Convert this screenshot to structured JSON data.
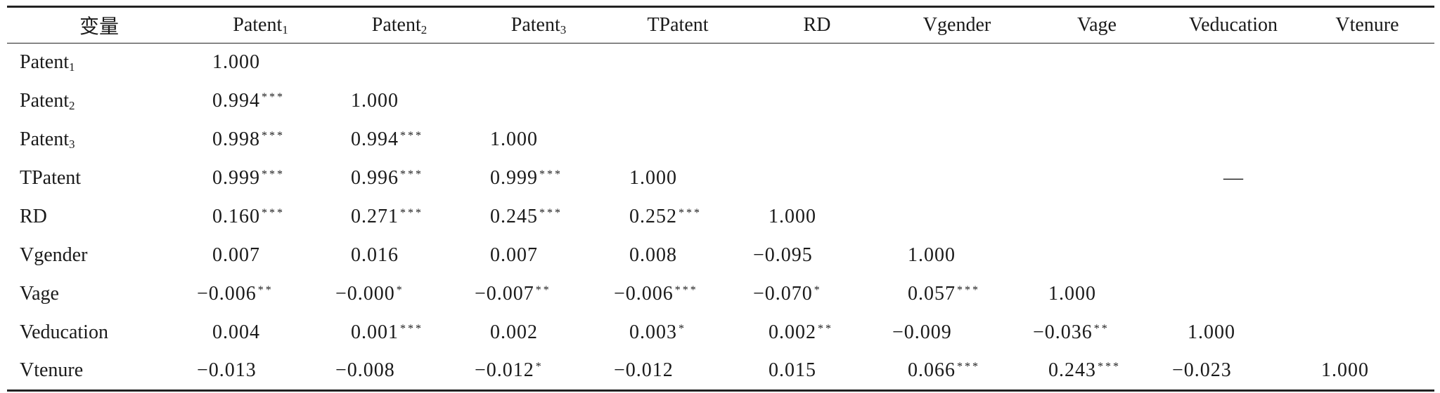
{
  "table": {
    "columns": [
      {
        "base": "变量",
        "sub": ""
      },
      {
        "base": "Patent",
        "sub": "1"
      },
      {
        "base": "Patent",
        "sub": "2"
      },
      {
        "base": "Patent",
        "sub": "3"
      },
      {
        "base": "TPatent",
        "sub": ""
      },
      {
        "base": "RD",
        "sub": ""
      },
      {
        "base": "Vgender",
        "sub": ""
      },
      {
        "base": "Vage",
        "sub": ""
      },
      {
        "base": "Veducation",
        "sub": ""
      },
      {
        "base": "Vtenure",
        "sub": ""
      }
    ],
    "rows": [
      {
        "label": {
          "base": "Patent",
          "sub": "1"
        },
        "cells": [
          {
            "v": "1.000",
            "s": ""
          }
        ]
      },
      {
        "label": {
          "base": "Patent",
          "sub": "2"
        },
        "cells": [
          {
            "v": "0.994",
            "s": "***"
          },
          {
            "v": "1.000",
            "s": ""
          }
        ]
      },
      {
        "label": {
          "base": "Patent",
          "sub": "3"
        },
        "cells": [
          {
            "v": "0.998",
            "s": "***"
          },
          {
            "v": "0.994",
            "s": "***"
          },
          {
            "v": "1.000",
            "s": ""
          }
        ]
      },
      {
        "label": {
          "base": "TPatent",
          "sub": ""
        },
        "cells": [
          {
            "v": "0.999",
            "s": "***"
          },
          {
            "v": "0.996",
            "s": "***"
          },
          {
            "v": "0.999",
            "s": "***"
          },
          {
            "v": "1.000",
            "s": ""
          }
        ],
        "dash": "—"
      },
      {
        "label": {
          "base": "RD",
          "sub": ""
        },
        "cells": [
          {
            "v": "0.160",
            "s": "***"
          },
          {
            "v": "0.271",
            "s": "***"
          },
          {
            "v": "0.245",
            "s": "***"
          },
          {
            "v": "0.252",
            "s": "***"
          },
          {
            "v": "1.000",
            "s": ""
          }
        ]
      },
      {
        "label": {
          "base": "Vgender",
          "sub": ""
        },
        "cells": [
          {
            "v": "0.007",
            "s": ""
          },
          {
            "v": "0.016",
            "s": ""
          },
          {
            "v": "0.007",
            "s": ""
          },
          {
            "v": "0.008",
            "s": ""
          },
          {
            "v": "−0.095",
            "s": ""
          },
          {
            "v": "1.000",
            "s": ""
          }
        ]
      },
      {
        "label": {
          "base": "Vage",
          "sub": ""
        },
        "cells": [
          {
            "v": "−0.006",
            "s": "**"
          },
          {
            "v": "−0.000",
            "s": "*"
          },
          {
            "v": "−0.007",
            "s": "**"
          },
          {
            "v": "−0.006",
            "s": "***"
          },
          {
            "v": "−0.070",
            "s": "*"
          },
          {
            "v": "0.057",
            "s": "***"
          },
          {
            "v": "1.000",
            "s": ""
          }
        ]
      },
      {
        "label": {
          "base": "Veducation",
          "sub": ""
        },
        "cells": [
          {
            "v": "0.004",
            "s": ""
          },
          {
            "v": "0.001",
            "s": "***"
          },
          {
            "v": "0.002",
            "s": ""
          },
          {
            "v": "0.003",
            "s": "*"
          },
          {
            "v": "0.002",
            "s": "**"
          },
          {
            "v": "−0.009",
            "s": ""
          },
          {
            "v": "−0.036",
            "s": "**"
          },
          {
            "v": "1.000",
            "s": ""
          }
        ]
      },
      {
        "label": {
          "base": "Vtenure",
          "sub": ""
        },
        "cells": [
          {
            "v": "−0.013",
            "s": ""
          },
          {
            "v": "−0.008",
            "s": ""
          },
          {
            "v": "−0.012",
            "s": "*"
          },
          {
            "v": "−0.012",
            "s": ""
          },
          {
            "v": "0.015",
            "s": ""
          },
          {
            "v": "0.066",
            "s": "***"
          },
          {
            "v": "0.243",
            "s": "***"
          },
          {
            "v": "−0.023",
            "s": ""
          },
          {
            "v": "1.000",
            "s": ""
          }
        ]
      }
    ]
  }
}
